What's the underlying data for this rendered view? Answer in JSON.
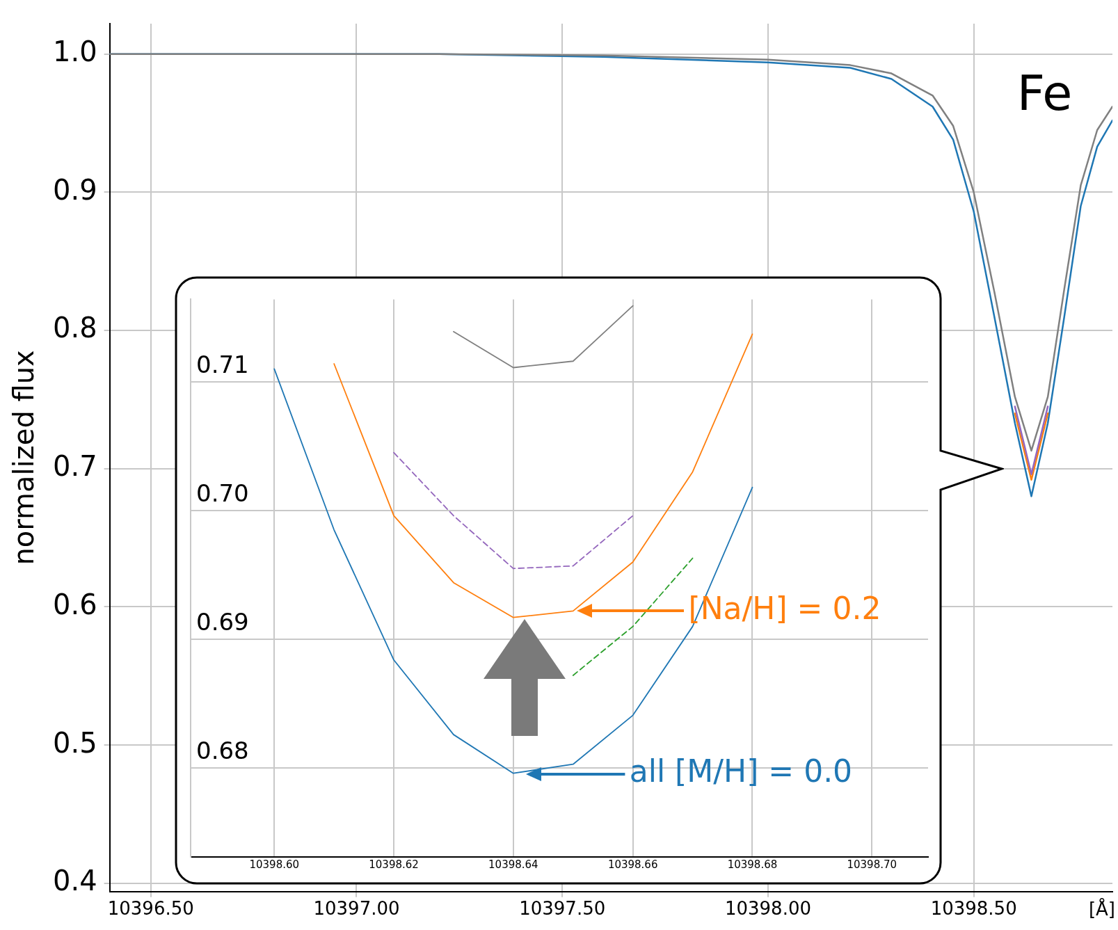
{
  "chart_data": [
    {
      "type": "line",
      "xlabel": "[Å]",
      "ylabel": "normalized flux",
      "annotations": [
        "Fe"
      ],
      "x": [
        10396.4,
        10396.8,
        10397.2,
        10397.6,
        10398.0,
        10398.2,
        10398.3,
        10398.4,
        10398.45,
        10398.5,
        10398.55,
        10398.6,
        10398.64,
        10398.68,
        10398.72,
        10398.76,
        10398.8,
        10398.837
      ],
      "series": [
        {
          "color": "#808080",
          "values": [
            1.0,
            1.0,
            1.0,
            0.999,
            0.996,
            0.992,
            0.986,
            0.97,
            0.948,
            0.9,
            0.828,
            0.752,
            0.713,
            0.752,
            0.83,
            0.905,
            0.945,
            0.962
          ]
        },
        {
          "color": "#9467bd",
          "values": [
            null,
            null,
            null,
            null,
            null,
            null,
            null,
            null,
            null,
            null,
            null,
            0.745,
            0.696,
            0.745,
            null,
            null,
            null,
            null
          ]
        },
        {
          "color": "#ff7f0e",
          "values": [
            null,
            null,
            null,
            null,
            null,
            null,
            null,
            null,
            null,
            null,
            null,
            0.74,
            0.692,
            0.74,
            null,
            null,
            null,
            null
          ]
        },
        {
          "color": "#1f77b4",
          "values": [
            1.0,
            1.0,
            1.0,
            0.998,
            0.994,
            0.99,
            0.982,
            0.962,
            0.938,
            0.886,
            0.81,
            0.733,
            0.68,
            0.733,
            0.81,
            0.89,
            0.933,
            0.952
          ]
        }
      ],
      "xlim": [
        10396.4,
        10398.837
      ],
      "xticks": [
        {
          "value": 10396.5,
          "label": "10396.50"
        },
        {
          "value": 10397,
          "label": "10397.00"
        },
        {
          "value": 10397.5,
          "label": "10397.50"
        },
        {
          "value": 10398,
          "label": "10398.00"
        },
        {
          "value": 10398.5,
          "label": "10398.50"
        }
      ],
      "ylim": [
        0.394,
        1.022
      ],
      "yticks": [
        0.4,
        0.5,
        0.6,
        0.7,
        0.8,
        0.9,
        {
          "value": 1,
          "label": "1.0"
        }
      ],
      "grid": true,
      "legend": false,
      "marker": "none",
      "line_style": "solid"
    },
    {
      "type": "line",
      "annotations": [
        "[Na/H] = 0.2",
        "all [M/H] = 0.0"
      ],
      "x": [
        10398.6,
        10398.61,
        10398.62,
        10398.63,
        10398.64,
        10398.65,
        10398.66,
        10398.67,
        10398.68
      ],
      "series": [
        {
          "color": "#808080",
          "values": [
            null,
            null,
            null,
            0.7139,
            0.7111,
            0.7116,
            0.7159,
            null,
            null
          ]
        },
        {
          "color": "#ff7f0e",
          "values": [
            null,
            0.7114,
            0.6996,
            0.6944,
            0.6917,
            0.6922,
            0.696,
            0.703,
            0.7137
          ]
        },
        {
          "color": "#9467bd",
          "values": [
            null,
            null,
            0.7045,
            0.6996,
            0.6955,
            0.6957,
            0.6996,
            null,
            null
          ],
          "line_style": "dashed"
        },
        {
          "color": "#2ca02c",
          "values": [
            null,
            null,
            null,
            null,
            null,
            0.6872,
            0.691,
            0.6963,
            null
          ],
          "line_style": "dashed"
        },
        {
          "color": "#1f77b4",
          "values": [
            0.711,
            0.6985,
            0.6884,
            0.6826,
            0.6796,
            0.6803,
            0.6841,
            0.691,
            0.7018
          ]
        }
      ],
      "xlim": [
        10398.586,
        10398.7094
      ],
      "xticks": [
        {
          "value": 10398.6,
          "label": "10398.60"
        },
        {
          "value": 10398.62,
          "label": "10398.62"
        },
        {
          "value": 10398.64,
          "label": "10398.64"
        },
        {
          "value": 10398.66,
          "label": "10398.66"
        },
        {
          "value": 10398.68,
          "label": "10398.68"
        },
        {
          "value": 10398.7,
          "label": "10398.70"
        }
      ],
      "ylim": [
        0.6731,
        0.7164
      ],
      "yticks": [
        0.68,
        0.69,
        {
          "value": 0.7,
          "label": "0.70"
        },
        0.71
      ],
      "grid": true,
      "legend": false,
      "marker": "none",
      "line_style": "solid"
    }
  ]
}
